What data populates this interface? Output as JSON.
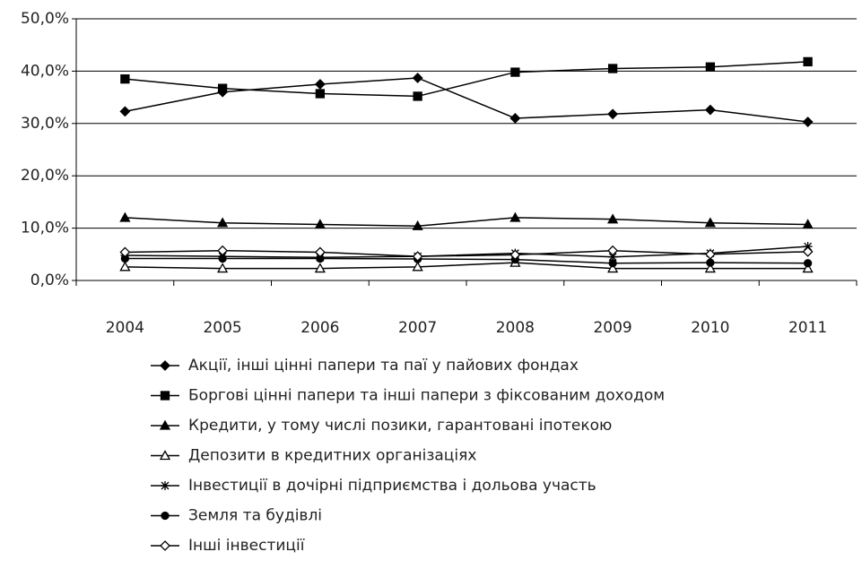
{
  "chart_data": {
    "type": "line",
    "categories": [
      "2004",
      "2005",
      "2006",
      "2007",
      "2008",
      "2009",
      "2010",
      "2011"
    ],
    "series": [
      {
        "name": "Акції, інші цінні папери та паї у пайових фондах",
        "color": "#000000",
        "marker": "diamond",
        "values": [
          32.3,
          36.0,
          37.5,
          38.7,
          31.0,
          31.8,
          32.6,
          30.3
        ]
      },
      {
        "name": "Боргові цінні папери та інші папери з фіксованим доходом",
        "color": "#000000",
        "marker": "square",
        "values": [
          38.5,
          36.7,
          35.7,
          35.2,
          39.8,
          40.5,
          40.8,
          41.8
        ]
      },
      {
        "name": "Кредити, у тому числі позики, гарантовані іпотекою",
        "color": "#000000",
        "marker": "triangle",
        "values": [
          12.0,
          11.0,
          10.7,
          10.4,
          12.0,
          11.7,
          11.0,
          10.7
        ]
      },
      {
        "name": "Депозити в кредитних організаціях",
        "color": "#000000",
        "marker": "triangle-open",
        "values": [
          2.6,
          2.3,
          2.3,
          2.6,
          3.4,
          2.3,
          2.3,
          2.3
        ]
      },
      {
        "name": "Інвестиції в дочірні підприємства і дольова участь",
        "color": "#000000",
        "marker": "star",
        "values": [
          4.8,
          4.6,
          4.4,
          4.6,
          5.2,
          4.5,
          5.2,
          6.5
        ]
      },
      {
        "name": "Земля та будівлі",
        "color": "#000000",
        "marker": "circle",
        "values": [
          4.2,
          4.2,
          4.2,
          4.1,
          4.0,
          3.3,
          3.4,
          3.3
        ]
      },
      {
        "name": "Інші інвестиції",
        "color": "#000000",
        "marker": "diamond-open",
        "values": [
          5.4,
          5.7,
          5.4,
          4.6,
          4.9,
          5.7,
          5.0,
          5.5
        ]
      }
    ],
    "ylim": [
      0,
      50
    ],
    "yticks": [
      {
        "value": 0,
        "label": "0,0%"
      },
      {
        "value": 10,
        "label": "10,0%"
      },
      {
        "value": 20,
        "label": "20,0%"
      },
      {
        "value": 30,
        "label": "30,0%"
      },
      {
        "value": 40,
        "label": "40,0%"
      },
      {
        "value": 50,
        "label": "50,0%"
      }
    ],
    "grid": true,
    "legend": "bottom"
  }
}
